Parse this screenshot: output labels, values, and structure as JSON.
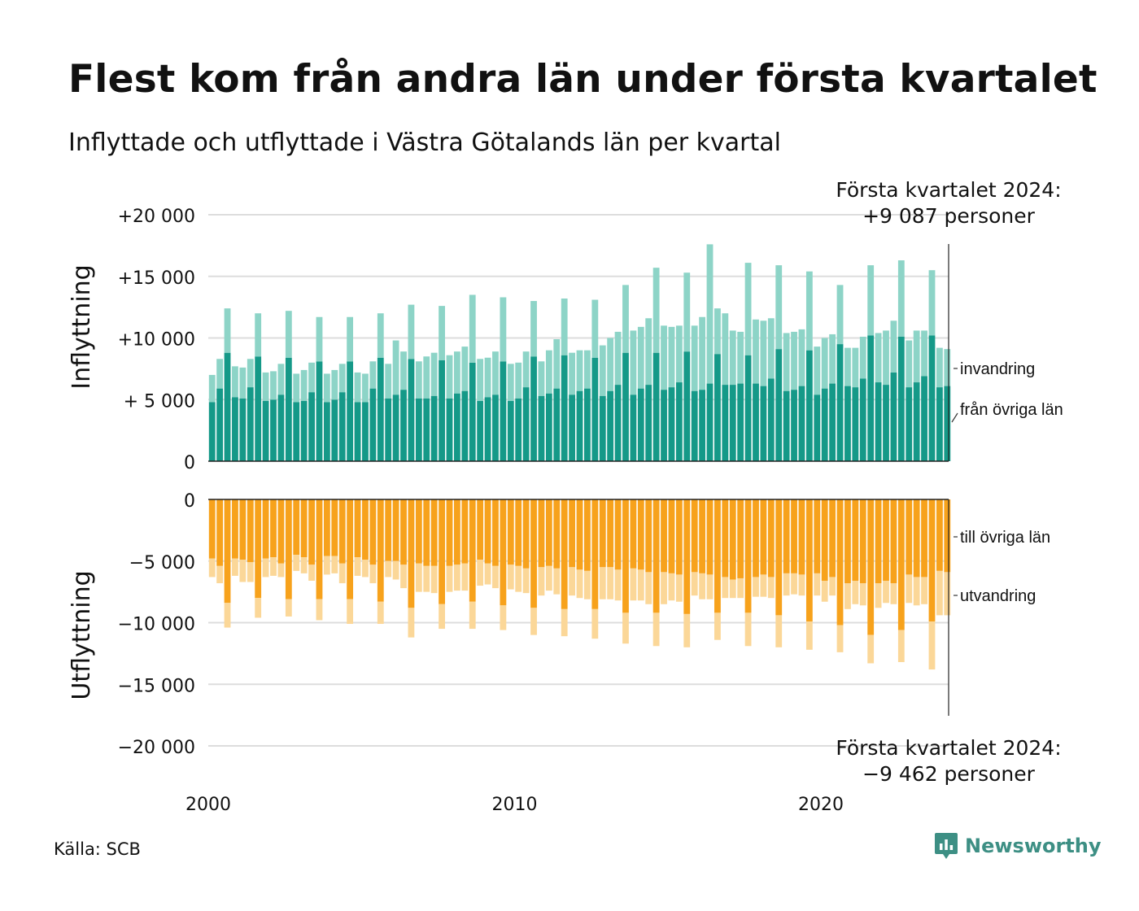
{
  "title": "Flest kom från andra län under första kvartalet",
  "subtitle": "Inflyttade och utflyttade i Västra Götalands län per kvartal",
  "source": "Källa: SCB",
  "brand": "Newsworthy",
  "colors": {
    "inflow_domestic": "#159988",
    "inflow_immigration": "#8dd4c7",
    "outflow_domestic": "#f7a21c",
    "outflow_emigration": "#fbd798",
    "gridline": "#dddddd"
  },
  "chart_data": [
    {
      "type": "bar",
      "stacked": true,
      "ylabel": "Inflyttning",
      "ylim": [
        0,
        20000
      ],
      "y_ticks": [
        0,
        5000,
        10000,
        15000,
        20000
      ],
      "y_tick_labels": [
        "0",
        "+ 5 000",
        "+10 000",
        "+15 000",
        "+20 000"
      ],
      "x_ticks": [
        2000,
        2010,
        2020
      ],
      "x_tick_labels": [
        "2000",
        "2010",
        "2020"
      ],
      "xlim": [
        2000,
        2024.25
      ],
      "annotation": {
        "line1": "Första kvartalet 2024:",
        "line2": "+9 087 personer"
      },
      "x": [
        "2000 Q1",
        "2000 Q2",
        "2000 Q3",
        "2000 Q4",
        "2001 Q1",
        "2001 Q2",
        "2001 Q3",
        "2001 Q4",
        "2002 Q1",
        "2002 Q2",
        "2002 Q3",
        "2002 Q4",
        "2003 Q1",
        "2003 Q2",
        "2003 Q3",
        "2003 Q4",
        "2004 Q1",
        "2004 Q2",
        "2004 Q3",
        "2004 Q4",
        "2005 Q1",
        "2005 Q2",
        "2005 Q3",
        "2005 Q4",
        "2006 Q1",
        "2006 Q2",
        "2006 Q3",
        "2006 Q4",
        "2007 Q1",
        "2007 Q2",
        "2007 Q3",
        "2007 Q4",
        "2008 Q1",
        "2008 Q2",
        "2008 Q3",
        "2008 Q4",
        "2009 Q1",
        "2009 Q2",
        "2009 Q3",
        "2009 Q4",
        "2010 Q1",
        "2010 Q2",
        "2010 Q3",
        "2010 Q4",
        "2011 Q1",
        "2011 Q2",
        "2011 Q3",
        "2011 Q4",
        "2012 Q1",
        "2012 Q2",
        "2012 Q3",
        "2012 Q4",
        "2013 Q1",
        "2013 Q2",
        "2013 Q3",
        "2013 Q4",
        "2014 Q1",
        "2014 Q2",
        "2014 Q3",
        "2014 Q4",
        "2015 Q1",
        "2015 Q2",
        "2015 Q3",
        "2015 Q4",
        "2016 Q1",
        "2016 Q2",
        "2016 Q3",
        "2016 Q4",
        "2017 Q1",
        "2017 Q2",
        "2017 Q3",
        "2017 Q4",
        "2018 Q1",
        "2018 Q2",
        "2018 Q3",
        "2018 Q4",
        "2019 Q1",
        "2019 Q2",
        "2019 Q3",
        "2019 Q4",
        "2020 Q1",
        "2020 Q2",
        "2020 Q3",
        "2020 Q4",
        "2021 Q1",
        "2021 Q2",
        "2021 Q3",
        "2021 Q4",
        "2022 Q1",
        "2022 Q2",
        "2022 Q3",
        "2022 Q4",
        "2023 Q1",
        "2023 Q2",
        "2023 Q3",
        "2023 Q4",
        "2024 Q1"
      ],
      "series": [
        {
          "name": "från övriga län",
          "values": [
            4800,
            5900,
            8800,
            5200,
            5100,
            6000,
            8500,
            4900,
            5000,
            5400,
            8400,
            4800,
            4900,
            5600,
            8100,
            4800,
            5000,
            5600,
            8100,
            4800,
            4800,
            5900,
            8400,
            5100,
            5400,
            5800,
            8300,
            5100,
            5100,
            5300,
            8200,
            5100,
            5500,
            5700,
            8000,
            4900,
            5200,
            5400,
            8100,
            4900,
            5100,
            6000,
            8500,
            5300,
            5500,
            5900,
            8600,
            5400,
            5700,
            5900,
            8400,
            5300,
            5700,
            6200,
            8800,
            5400,
            5900,
            6200,
            8800,
            5800,
            6000,
            6400,
            8900,
            5700,
            5800,
            6300,
            8700,
            6200,
            6200,
            6300,
            8600,
            6300,
            6100,
            6700,
            9100,
            5700,
            5800,
            6100,
            9000,
            5400,
            5900,
            6300,
            9500,
            6100,
            6000,
            6700,
            10200,
            6400,
            6200,
            7200,
            10100,
            6000,
            6400,
            6900,
            10200,
            6000,
            6100
          ]
        },
        {
          "name": "invandring",
          "values": [
            2200,
            2400,
            3600,
            2500,
            2500,
            2300,
            3500,
            2300,
            2300,
            2500,
            3800,
            2300,
            2500,
            2400,
            3600,
            2300,
            2400,
            2300,
            3600,
            2400,
            2300,
            2200,
            3600,
            2800,
            4400,
            3100,
            4400,
            3000,
            3400,
            3500,
            4400,
            3500,
            3400,
            3600,
            5500,
            3400,
            3200,
            3500,
            5200,
            3000,
            2900,
            2900,
            4500,
            2800,
            3500,
            4000,
            4600,
            3400,
            3300,
            3100,
            4700,
            4100,
            4300,
            4300,
            5500,
            5200,
            5000,
            5400,
            6900,
            5200,
            4900,
            4600,
            6400,
            5300,
            5900,
            11300,
            3700,
            5800,
            4400,
            4200,
            7500,
            5200,
            5300,
            4900,
            6800,
            4700,
            4700,
            4600,
            6400,
            3900,
            4100,
            4000,
            4800,
            3100,
            3200,
            3400,
            5700,
            4000,
            4400,
            4200,
            6200,
            3800,
            4200,
            3700,
            5300,
            3200,
            3000
          ]
        }
      ]
    },
    {
      "type": "bar",
      "stacked": true,
      "ylabel": "Utflyttning",
      "ylim": [
        -20000,
        0
      ],
      "y_ticks": [
        0,
        -5000,
        -10000,
        -15000,
        -20000
      ],
      "y_tick_labels": [
        "0",
        "−5 000",
        "−10 000",
        "−15 000",
        "−20 000"
      ],
      "x_ticks": [
        2000,
        2010,
        2020
      ],
      "x_tick_labels": [
        "2000",
        "2010",
        "2020"
      ],
      "xlim": [
        2000,
        2024.25
      ],
      "annotation": {
        "line1": "Första kvartalet 2024:",
        "line2": "−9 462 personer"
      },
      "x": [
        "2000 Q1",
        "2000 Q2",
        "2000 Q3",
        "2000 Q4",
        "2001 Q1",
        "2001 Q2",
        "2001 Q3",
        "2001 Q4",
        "2002 Q1",
        "2002 Q2",
        "2002 Q3",
        "2002 Q4",
        "2003 Q1",
        "2003 Q2",
        "2003 Q3",
        "2003 Q4",
        "2004 Q1",
        "2004 Q2",
        "2004 Q3",
        "2004 Q4",
        "2005 Q1",
        "2005 Q2",
        "2005 Q3",
        "2005 Q4",
        "2006 Q1",
        "2006 Q2",
        "2006 Q3",
        "2006 Q4",
        "2007 Q1",
        "2007 Q2",
        "2007 Q3",
        "2007 Q4",
        "2008 Q1",
        "2008 Q2",
        "2008 Q3",
        "2008 Q4",
        "2009 Q1",
        "2009 Q2",
        "2009 Q3",
        "2009 Q4",
        "2010 Q1",
        "2010 Q2",
        "2010 Q3",
        "2010 Q4",
        "2011 Q1",
        "2011 Q2",
        "2011 Q3",
        "2011 Q4",
        "2012 Q1",
        "2012 Q2",
        "2012 Q3",
        "2012 Q4",
        "2013 Q1",
        "2013 Q2",
        "2013 Q3",
        "2013 Q4",
        "2014 Q1",
        "2014 Q2",
        "2014 Q3",
        "2014 Q4",
        "2015 Q1",
        "2015 Q2",
        "2015 Q3",
        "2015 Q4",
        "2016 Q1",
        "2016 Q2",
        "2016 Q3",
        "2016 Q4",
        "2017 Q1",
        "2017 Q2",
        "2017 Q3",
        "2017 Q4",
        "2018 Q1",
        "2018 Q2",
        "2018 Q3",
        "2018 Q4",
        "2019 Q1",
        "2019 Q2",
        "2019 Q3",
        "2019 Q4",
        "2020 Q1",
        "2020 Q2",
        "2020 Q3",
        "2020 Q4",
        "2021 Q1",
        "2021 Q2",
        "2021 Q3",
        "2021 Q4",
        "2022 Q1",
        "2022 Q2",
        "2022 Q3",
        "2022 Q4",
        "2023 Q1",
        "2023 Q2",
        "2023 Q3",
        "2023 Q4",
        "2024 Q1"
      ],
      "series": [
        {
          "name": "till övriga län",
          "values": [
            -4800,
            -5400,
            -8400,
            -4800,
            -4900,
            -5100,
            -8000,
            -4800,
            -4700,
            -5200,
            -8100,
            -4500,
            -4700,
            -5300,
            -8100,
            -4600,
            -4600,
            -5200,
            -8100,
            -4700,
            -4900,
            -5300,
            -8300,
            -5000,
            -5000,
            -5300,
            -8800,
            -5200,
            -5400,
            -5400,
            -8500,
            -5400,
            -5300,
            -5200,
            -8300,
            -4900,
            -5200,
            -5400,
            -8600,
            -5300,
            -5400,
            -5600,
            -8800,
            -5500,
            -5400,
            -5600,
            -8900,
            -5500,
            -5700,
            -5800,
            -8900,
            -5500,
            -5500,
            -5700,
            -9200,
            -5600,
            -5700,
            -5900,
            -9200,
            -5900,
            -6000,
            -6100,
            -9300,
            -5900,
            -6000,
            -6100,
            -9200,
            -6300,
            -6500,
            -6400,
            -9200,
            -6300,
            -6100,
            -6300,
            -9400,
            -6000,
            -6000,
            -6100,
            -9900,
            -6000,
            -6600,
            -6300,
            -10200,
            -6800,
            -6600,
            -6800,
            -11000,
            -6800,
            -6600,
            -6800,
            -10600,
            -6100,
            -6300,
            -6300,
            -9900,
            -5800,
            -5900
          ]
        },
        {
          "name": "utvandring",
          "values": [
            -1500,
            -1400,
            -2000,
            -1400,
            -1800,
            -1600,
            -1600,
            -1500,
            -1500,
            -1100,
            -1400,
            -1300,
            -1300,
            -1300,
            -1700,
            -1500,
            -1400,
            -1600,
            -2000,
            -1500,
            -1400,
            -1500,
            -1800,
            -1300,
            -1500,
            -1900,
            -2400,
            -2300,
            -2100,
            -2200,
            -2000,
            -2100,
            -2100,
            -2200,
            -2200,
            -2100,
            -1700,
            -1800,
            -2000,
            -2000,
            -2100,
            -2000,
            -2200,
            -2300,
            -2000,
            -2100,
            -2200,
            -2300,
            -2300,
            -2300,
            -2400,
            -2600,
            -2600,
            -2500,
            -2500,
            -2600,
            -2500,
            -2600,
            -2700,
            -2600,
            -2200,
            -2200,
            -2700,
            -1900,
            -2100,
            -2000,
            -2200,
            -1700,
            -1500,
            -1600,
            -2700,
            -1600,
            -1800,
            -1700,
            -2600,
            -1800,
            -1700,
            -1700,
            -2300,
            -1800,
            -1700,
            -1500,
            -2200,
            -2100,
            -1900,
            -1800,
            -2300,
            -2000,
            -1800,
            -1700,
            -2600,
            -2300,
            -2300,
            -2200,
            -3900,
            -3600,
            -3500
          ]
        }
      ]
    }
  ],
  "legend_labels": {
    "inflow_immigration": "invandring",
    "inflow_domestic": "från övriga län",
    "outflow_domestic": "till övriga län",
    "outflow_emigration": "utvandring"
  }
}
